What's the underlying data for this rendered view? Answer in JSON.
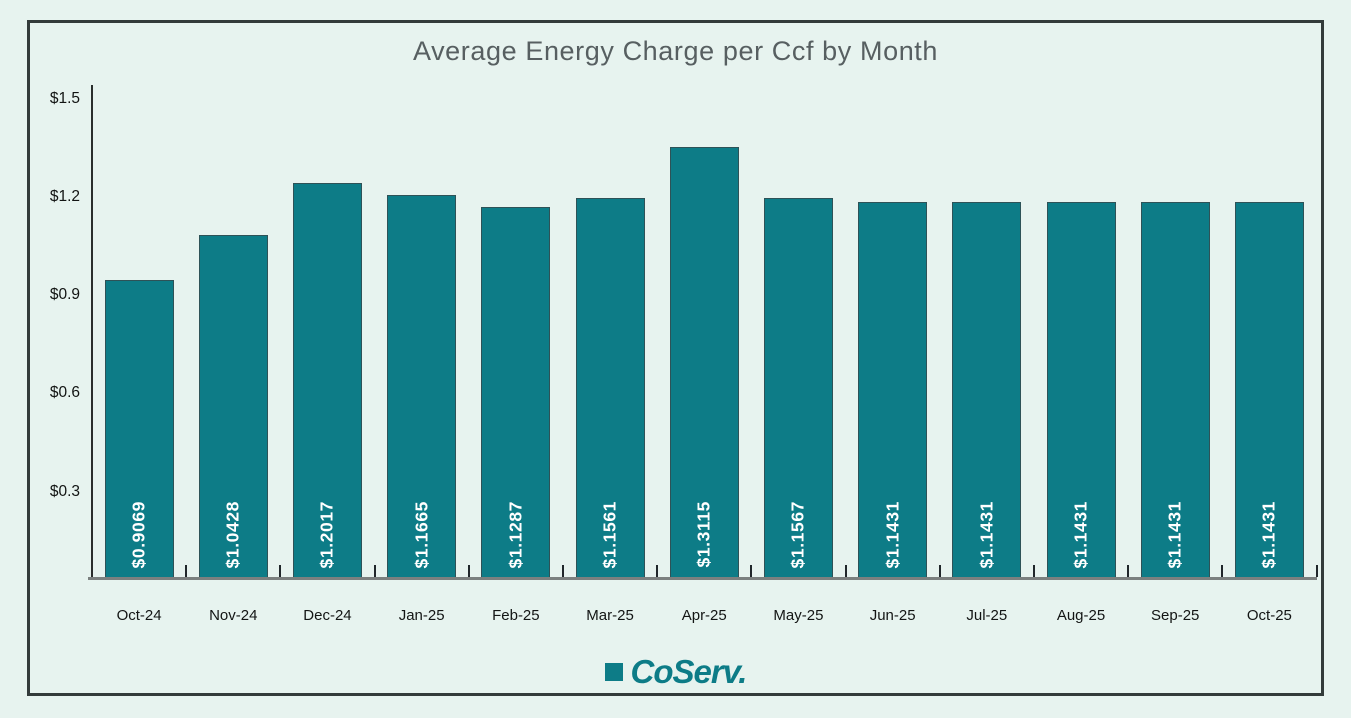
{
  "chart_data": {
    "type": "bar",
    "title": "Average Energy Charge per Ccf by Month",
    "categories": [
      "Oct-24",
      "Nov-24",
      "Dec-24",
      "Jan-25",
      "Feb-25",
      "Mar-25",
      "Apr-25",
      "May-25",
      "Jun-25",
      "Jul-25",
      "Aug-25",
      "Sep-25",
      "Oct-25"
    ],
    "values": [
      0.9069,
      1.0428,
      1.2017,
      1.1665,
      1.1287,
      1.1561,
      1.3115,
      1.1567,
      1.1431,
      1.1431,
      1.1431,
      1.1431,
      1.1431
    ],
    "bar_labels": [
      "$0.9069",
      "$1.0428",
      "$1.2017",
      "$1.1665",
      "$1.1287",
      "$1.1561",
      "$1.3115",
      "$1.1567",
      "$1.1431",
      "$1.1431",
      "$1.1431",
      "$1.1431",
      "$1.1431"
    ],
    "y_ticks": [
      {
        "label": "$1.5",
        "value": 1.5
      },
      {
        "label": "$1.2",
        "value": 1.2
      },
      {
        "label": "$0.9",
        "value": 0.9
      },
      {
        "label": "$0.6",
        "value": 0.6
      },
      {
        "label": "$0.3",
        "value": 0.3
      }
    ],
    "ylim": [
      0,
      1.5
    ],
    "xlabel": "",
    "ylabel": "",
    "grid": false,
    "legend": "none",
    "bar_label_orientation": "vertical-bottom-to-top",
    "colors": {
      "background": "#e7f3ef",
      "bar_fill": "#0d7c87",
      "bar_border": "#2e5257",
      "bar_label_text": "#ffffff",
      "title_text": "#575f61",
      "axis_text": "#121413",
      "axis_line": "#2a2e2d",
      "baseline": "#7b807f",
      "frame_border": "#333b3a"
    }
  },
  "logo": {
    "brand": "CoServ.",
    "color": "#0d7c87"
  }
}
